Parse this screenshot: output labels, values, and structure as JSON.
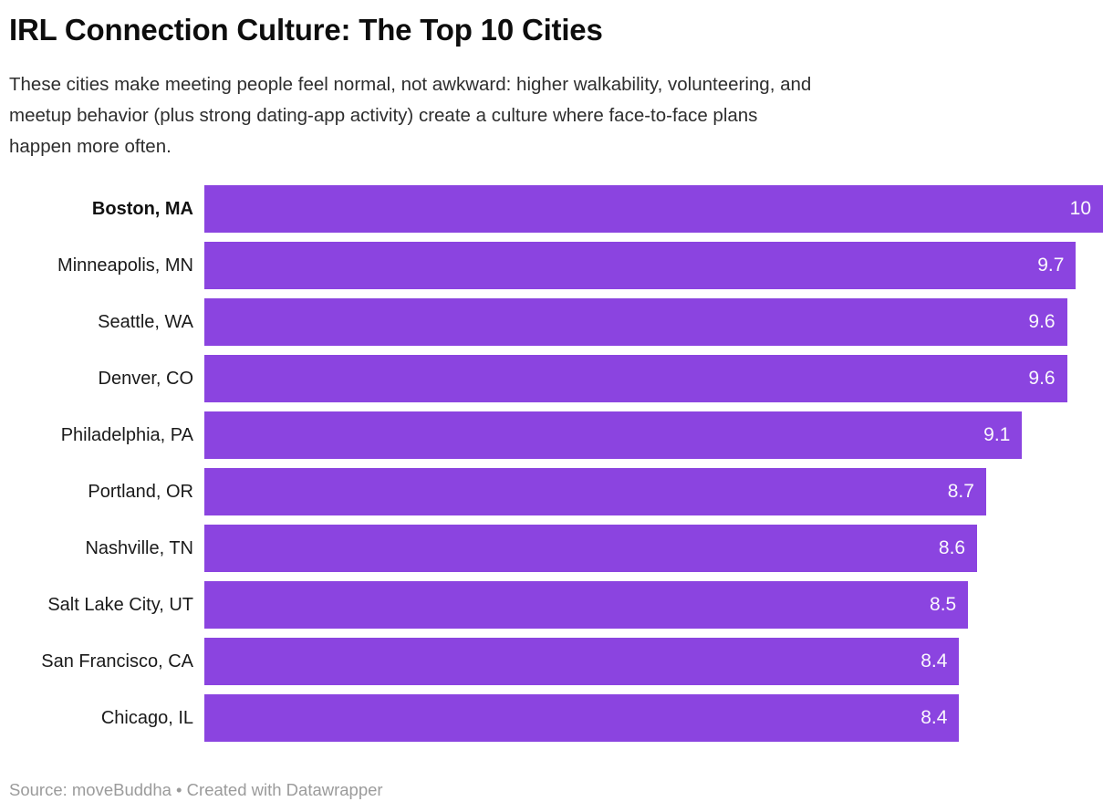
{
  "header": {
    "title": "IRL Connection Culture: The Top 10 Cities",
    "description_lines": [
      "These cities make meeting people feel normal, not awkward: higher walkability, volunteering, and",
      "meetup behavior (plus strong dating-app activity) create a culture where face-to-face plans",
      "happen more often."
    ]
  },
  "footer": {
    "text": "Source: moveBuddha • Created with Datawrapper"
  },
  "chart_data": {
    "type": "bar",
    "orientation": "horizontal",
    "title": "IRL Connection Culture: The Top 10 Cities",
    "categories": [
      "Boston, MA",
      "Minneapolis, MN",
      "Seattle, WA",
      "Denver, CO",
      "Philadelphia, PA",
      "Portland, OR",
      "Nashville, TN",
      "Salt Lake City, UT",
      "San Francisco, CA",
      "Chicago, IL"
    ],
    "values": [
      10,
      9.7,
      9.6,
      9.6,
      9.1,
      8.7,
      8.6,
      8.5,
      8.4,
      8.4
    ],
    "value_labels": [
      "10",
      "9.7",
      "9.6",
      "9.6",
      "9.1",
      "8.7",
      "8.6",
      "8.5",
      "8.4",
      "8.4"
    ],
    "emphasized_index": 0,
    "xlim": [
      0,
      10
    ],
    "grid": false,
    "legend": false,
    "bar_color": "#8B44E0",
    "value_label_color": "#FAF8FD",
    "value_labels_position": "inside-end"
  }
}
